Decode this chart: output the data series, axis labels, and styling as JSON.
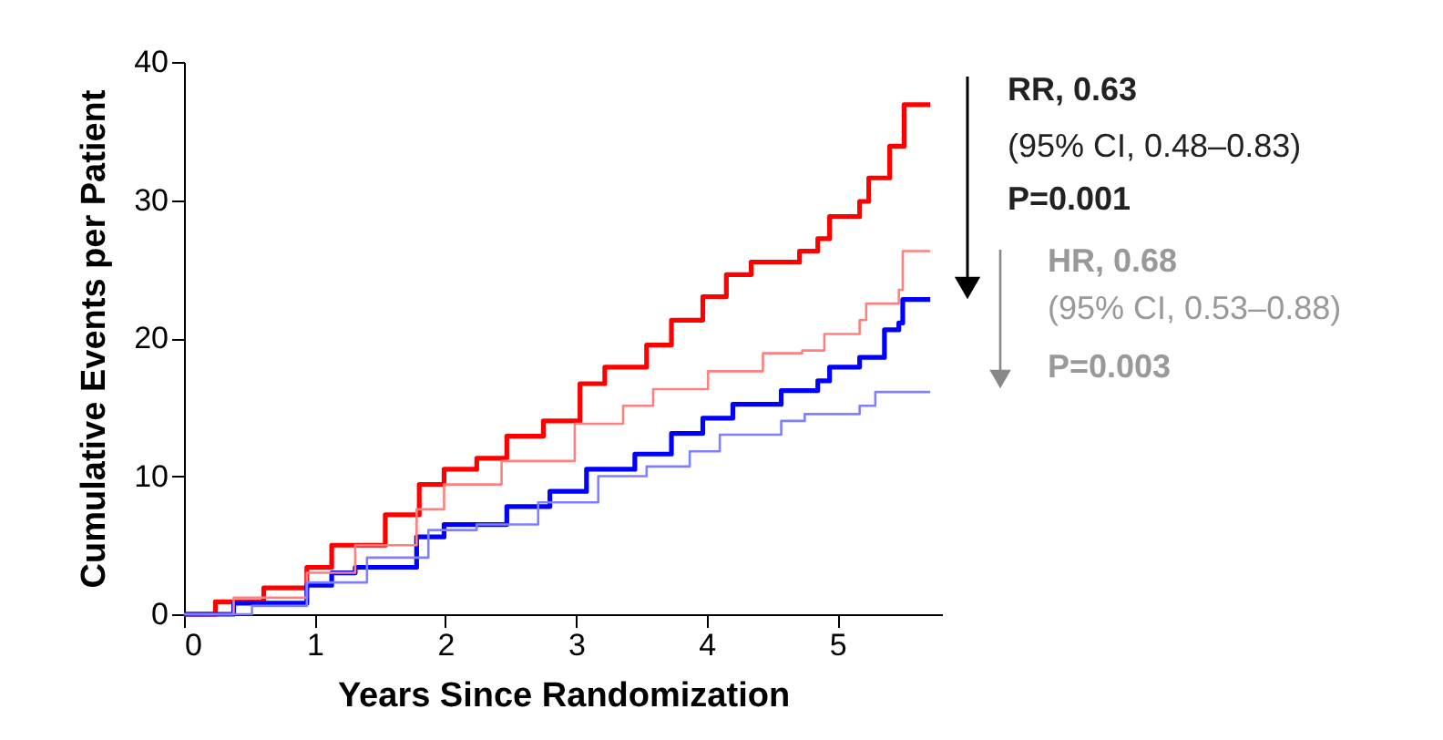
{
  "chart_data": {
    "type": "step",
    "xlabel": "Years Since Randomization",
    "ylabel": "Cumulative Events per Patient",
    "xlim": [
      0,
      5.8
    ],
    "ylim": [
      0,
      40
    ],
    "xticks": [
      0,
      1,
      2,
      3,
      4,
      5
    ],
    "yticks": [
      0,
      10,
      20,
      30,
      40
    ],
    "grid": false,
    "series": [
      {
        "color": "#ff0000",
        "x": [
          0,
          0.24,
          0.61,
          0.94,
          1.13,
          1.27,
          1.54,
          1.8,
          1.99,
          2.24,
          2.47,
          2.75,
          3.03,
          3.22,
          3.54,
          3.73,
          3.97,
          4.15,
          4.34,
          4.71,
          4.85,
          4.94,
          5.17,
          5.24,
          5.4,
          5.51,
          5.71
        ],
        "values": [
          0,
          0.9,
          1.9,
          3.4,
          5.0,
          5.0,
          7.2,
          9.4,
          10.5,
          11.3,
          12.9,
          14.0,
          16.7,
          17.9,
          19.5,
          21.3,
          23.0,
          24.6,
          25.5,
          26.3,
          27.2,
          28.8,
          29.9,
          31.6,
          33.9,
          36.9,
          36.9
        ]
      },
      {
        "color": "#0000ff",
        "x": [
          0,
          0.38,
          0.94,
          1.13,
          1.31,
          1.78,
          1.99,
          2.47,
          2.8,
          3.08,
          3.45,
          3.73,
          3.97,
          4.2,
          4.57,
          4.85,
          4.94,
          5.17,
          5.36,
          5.47,
          5.5,
          5.71
        ],
        "values": [
          0,
          0.8,
          2.1,
          3.0,
          3.4,
          5.6,
          6.5,
          7.8,
          8.9,
          10.5,
          11.6,
          13.1,
          14.2,
          15.2,
          16.2,
          16.9,
          17.9,
          18.6,
          20.6,
          21.1,
          22.8,
          22.8
        ]
      },
      {
        "color": "#ff8080",
        "x": [
          0,
          0.38,
          0.94,
          1.31,
          1.78,
          1.99,
          2.43,
          2.99,
          3.36,
          3.59,
          4.01,
          4.43,
          4.73,
          4.9,
          5.17,
          5.22,
          5.47,
          5.5,
          5.71
        ],
        "values": [
          0,
          1.2,
          3.0,
          5.0,
          7.6,
          9.4,
          11.1,
          13.8,
          15.1,
          16.3,
          17.6,
          18.9,
          19.1,
          20.3,
          21.3,
          22.5,
          23.5,
          26.3,
          26.3
        ]
      },
      {
        "color": "#8080ff",
        "x": [
          0,
          0.52,
          0.94,
          1.4,
          1.87,
          2.24,
          2.71,
          3.17,
          3.54,
          3.87,
          4.1,
          4.57,
          4.75,
          5.17,
          5.29,
          5.71
        ],
        "values": [
          0,
          0.6,
          2.3,
          4.1,
          6.1,
          6.5,
          8.1,
          10.0,
          10.7,
          11.8,
          13.0,
          14.0,
          14.5,
          15.1,
          16.1,
          16.1
        ]
      }
    ],
    "annotations": [
      "RR, 0.63",
      "(95% CI, 0.48–0.83)",
      "P=0.001",
      "HR, 0.68",
      "(95% CI, 0.53–0.88)",
      "P=0.003"
    ]
  }
}
